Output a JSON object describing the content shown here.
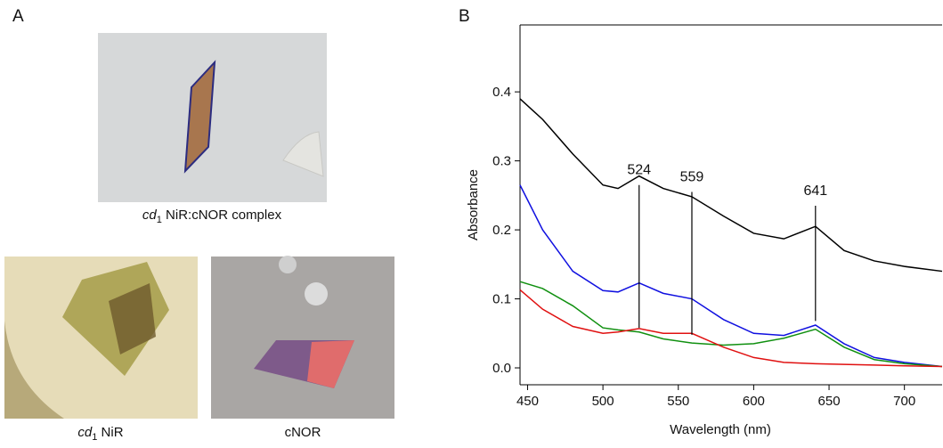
{
  "panel_a": {
    "label": "A",
    "images": [
      {
        "caption": {
          "italic": "cd",
          "sub": "1",
          "rest": " NiR:cNOR complex"
        }
      },
      {
        "caption": {
          "italic": "cd",
          "sub": "1",
          "rest": " NiR"
        }
      },
      {
        "caption": {
          "text": "cNOR"
        }
      }
    ]
  },
  "chart_data": {
    "type": "line",
    "panel_label": "B",
    "xlabel": "Wavelength (nm)",
    "ylabel": "Absorbance",
    "x": [
      445,
      460,
      480,
      500,
      510,
      524,
      540,
      559,
      580,
      600,
      620,
      641,
      660,
      680,
      700,
      725
    ],
    "series": [
      {
        "color": "#000000",
        "values": [
          0.39,
          0.36,
          0.31,
          0.265,
          0.26,
          0.278,
          0.26,
          0.248,
          0.22,
          0.195,
          0.187,
          0.205,
          0.17,
          0.155,
          0.147,
          0.14
        ]
      },
      {
        "color": "#1010e0",
        "values": [
          0.265,
          0.2,
          0.14,
          0.112,
          0.11,
          0.123,
          0.108,
          0.1,
          0.07,
          0.05,
          0.047,
          0.062,
          0.035,
          0.015,
          0.008,
          0.002
        ]
      },
      {
        "color": "#109010",
        "values": [
          0.125,
          0.115,
          0.09,
          0.058,
          0.055,
          0.052,
          0.042,
          0.036,
          0.033,
          0.035,
          0.043,
          0.056,
          0.03,
          0.012,
          0.006,
          0.002
        ]
      },
      {
        "color": "#e01010",
        "values": [
          0.113,
          0.085,
          0.06,
          0.05,
          0.052,
          0.057,
          0.05,
          0.05,
          0.03,
          0.015,
          0.008,
          0.006,
          0.005,
          0.004,
          0.003,
          0.002
        ]
      }
    ],
    "annotations": [
      {
        "x": 524,
        "y_from": 0.058,
        "y_to": 0.265
      },
      {
        "x": 559,
        "y_from": 0.048,
        "y_to": 0.255
      },
      {
        "x": 641,
        "y_from": 0.068,
        "y_to": 0.235
      }
    ],
    "xlim": [
      445,
      725
    ],
    "ylim": [
      -0.0245,
      0.497
    ],
    "xticks": [
      450,
      500,
      550,
      600,
      650,
      700
    ],
    "yticks": [
      {
        "value": 0,
        "label": "0.0"
      },
      0.1,
      0.2,
      0.3,
      0.4
    ]
  }
}
